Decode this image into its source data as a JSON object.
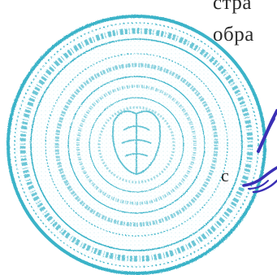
{
  "document": {
    "lines": [
      "стра",
      "обра",
      "с"
    ]
  },
  "stamp": {
    "color": "#3bb3c8",
    "description_icon": "round-seal-stamp"
  },
  "signature": {
    "color": "#3a2fb5",
    "icon": "handwritten-signature"
  }
}
